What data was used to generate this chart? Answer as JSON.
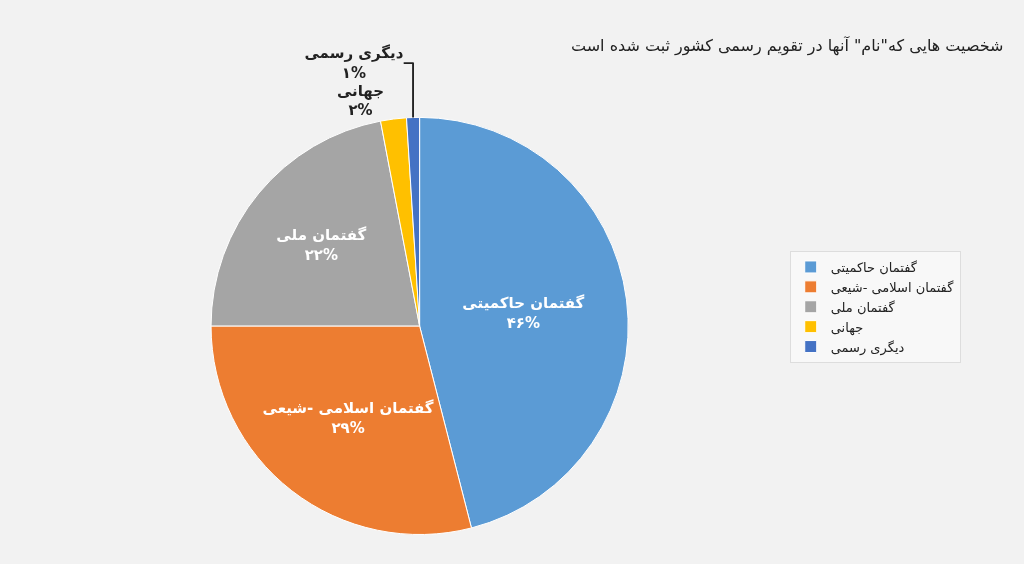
{
  "chart_data": {
    "type": "pie",
    "title": "شخصیت هایی که\"نام\" آنها در تقویم رسمی کشور ثبت شده است",
    "categories": [
      "گفتمان حاکمیتی",
      "گفتمان اسلامی -شیعی",
      "گفتمان ملی",
      "جهانی",
      "دیگری رسمی"
    ],
    "values": [
      46,
      29,
      22,
      2,
      1
    ],
    "value_labels": [
      "۴۶%",
      "۲۹%",
      "۲۲%",
      "۲%",
      "۱%"
    ],
    "colors": [
      "#5b9bd5",
      "#ed7d31",
      "#a5a5a5",
      "#ffc000",
      "#4472c4"
    ],
    "legend": "right"
  }
}
